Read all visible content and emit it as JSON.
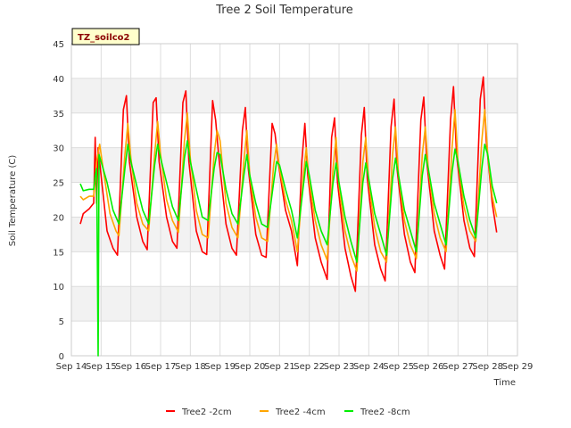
{
  "chart_data": {
    "type": "line",
    "title": "Tree 2 Soil Temperature",
    "xlabel": "Time",
    "ylabel": "Soil Temperature (C)",
    "ylim": [
      0,
      45
    ],
    "xlim": [
      14,
      29
    ],
    "yticks": [
      0,
      5,
      10,
      15,
      20,
      25,
      30,
      35,
      40,
      45
    ],
    "xticks": [
      {
        "value": 14,
        "label": "Sep 14"
      },
      {
        "value": 15,
        "label": "Sep 15"
      },
      {
        "value": 16,
        "label": "Sep 16"
      },
      {
        "value": 17,
        "label": "Sep 17"
      },
      {
        "value": 18,
        "label": "Sep 18"
      },
      {
        "value": 19,
        "label": "Sep 19"
      },
      {
        "value": 20,
        "label": "Sep 20"
      },
      {
        "value": 21,
        "label": "Sep 21"
      },
      {
        "value": 22,
        "label": "Sep 22"
      },
      {
        "value": 23,
        "label": "Sep 23"
      },
      {
        "value": 24,
        "label": "Sep 24"
      },
      {
        "value": 25,
        "label": "Sep 25"
      },
      {
        "value": 26,
        "label": "Sep 26"
      },
      {
        "value": 27,
        "label": "Sep 27"
      },
      {
        "value": 28,
        "label": "Sep 28"
      },
      {
        "value": 29,
        "label": "Sep 29"
      }
    ],
    "grid": true,
    "legend_position": "bottom",
    "annotation": "TZ_soilco2",
    "series": [
      {
        "name": "Tree2 -2cm",
        "color": "#ff0000",
        "points": [
          [
            14.3,
            19.0
          ],
          [
            14.4,
            20.5
          ],
          [
            14.6,
            21.2
          ],
          [
            14.75,
            22.0
          ],
          [
            14.8,
            31.5
          ],
          [
            14.85,
            22.0
          ],
          [
            14.9,
            30.0
          ],
          [
            15.0,
            26.0
          ],
          [
            15.2,
            18.0
          ],
          [
            15.4,
            15.5
          ],
          [
            15.55,
            14.5
          ],
          [
            15.75,
            35.5
          ],
          [
            15.85,
            37.5
          ],
          [
            15.95,
            28.0
          ],
          [
            16.2,
            20.0
          ],
          [
            16.4,
            16.5
          ],
          [
            16.55,
            15.3
          ],
          [
            16.75,
            36.5
          ],
          [
            16.85,
            37.2
          ],
          [
            16.95,
            28.0
          ],
          [
            17.2,
            20.0
          ],
          [
            17.4,
            16.5
          ],
          [
            17.55,
            15.5
          ],
          [
            17.75,
            36.5
          ],
          [
            17.85,
            38.2
          ],
          [
            17.95,
            28.0
          ],
          [
            18.2,
            18.0
          ],
          [
            18.4,
            15.0
          ],
          [
            18.55,
            14.6
          ],
          [
            18.75,
            36.8
          ],
          [
            18.85,
            34.0
          ],
          [
            18.95,
            29.0
          ],
          [
            19.2,
            19.0
          ],
          [
            19.4,
            15.5
          ],
          [
            19.55,
            14.5
          ],
          [
            19.75,
            32.5
          ],
          [
            19.85,
            35.8
          ],
          [
            19.95,
            27.0
          ],
          [
            20.2,
            17.5
          ],
          [
            20.4,
            14.5
          ],
          [
            20.55,
            14.2
          ],
          [
            20.75,
            33.5
          ],
          [
            20.85,
            32.0
          ],
          [
            20.95,
            28.0
          ],
          [
            21.2,
            21.0
          ],
          [
            21.4,
            18.0
          ],
          [
            21.6,
            13.0
          ],
          [
            21.75,
            28.0
          ],
          [
            21.85,
            33.5
          ],
          [
            21.95,
            26.0
          ],
          [
            22.2,
            17.0
          ],
          [
            22.4,
            13.5
          ],
          [
            22.6,
            11.0
          ],
          [
            22.75,
            31.5
          ],
          [
            22.85,
            34.3
          ],
          [
            22.95,
            25.0
          ],
          [
            23.2,
            15.5
          ],
          [
            23.4,
            11.5
          ],
          [
            23.55,
            9.3
          ],
          [
            23.75,
            31.8
          ],
          [
            23.85,
            35.8
          ],
          [
            23.95,
            25.5
          ],
          [
            24.2,
            16.0
          ],
          [
            24.4,
            12.5
          ],
          [
            24.55,
            10.8
          ],
          [
            24.75,
            33.0
          ],
          [
            24.85,
            37.0
          ],
          [
            24.95,
            27.0
          ],
          [
            25.2,
            17.5
          ],
          [
            25.4,
            13.5
          ],
          [
            25.55,
            12.0
          ],
          [
            25.75,
            34.0
          ],
          [
            25.85,
            37.3
          ],
          [
            25.95,
            28.0
          ],
          [
            26.2,
            18.0
          ],
          [
            26.4,
            14.5
          ],
          [
            26.55,
            12.5
          ],
          [
            26.75,
            34.0
          ],
          [
            26.85,
            38.8
          ],
          [
            26.95,
            29.0
          ],
          [
            27.2,
            19.5
          ],
          [
            27.4,
            15.5
          ],
          [
            27.55,
            14.3
          ],
          [
            27.75,
            37.0
          ],
          [
            27.85,
            40.2
          ],
          [
            27.95,
            31.0
          ],
          [
            28.15,
            22.0
          ],
          [
            28.3,
            17.8
          ]
        ]
      },
      {
        "name": "Tree2 -4cm",
        "color": "#ffa500",
        "points": [
          [
            14.3,
            23.0
          ],
          [
            14.4,
            22.5
          ],
          [
            14.6,
            23.0
          ],
          [
            14.75,
            23.0
          ],
          [
            14.85,
            28.0
          ],
          [
            14.95,
            30.5
          ],
          [
            15.1,
            26.0
          ],
          [
            15.3,
            20.5
          ],
          [
            15.5,
            18.0
          ],
          [
            15.6,
            17.3
          ],
          [
            15.8,
            29.0
          ],
          [
            15.9,
            33.5
          ],
          [
            16.0,
            28.5
          ],
          [
            16.2,
            22.0
          ],
          [
            16.4,
            19.0
          ],
          [
            16.6,
            18.0
          ],
          [
            16.8,
            29.0
          ],
          [
            16.9,
            33.8
          ],
          [
            17.0,
            29.0
          ],
          [
            17.2,
            22.5
          ],
          [
            17.4,
            19.5
          ],
          [
            17.6,
            17.8
          ],
          [
            17.8,
            31.0
          ],
          [
            17.9,
            35.0
          ],
          [
            18.0,
            28.5
          ],
          [
            18.2,
            21.0
          ],
          [
            18.4,
            17.5
          ],
          [
            18.6,
            17.0
          ],
          [
            18.8,
            29.0
          ],
          [
            18.9,
            32.5
          ],
          [
            19.0,
            31.0
          ],
          [
            19.2,
            22.0
          ],
          [
            19.4,
            18.5
          ],
          [
            19.6,
            17.0
          ],
          [
            19.8,
            28.0
          ],
          [
            19.9,
            32.5
          ],
          [
            20.0,
            26.0
          ],
          [
            20.2,
            20.0
          ],
          [
            20.4,
            17.0
          ],
          [
            20.6,
            16.5
          ],
          [
            20.8,
            27.5
          ],
          [
            20.9,
            30.5
          ],
          [
            21.0,
            27.0
          ],
          [
            21.2,
            22.5
          ],
          [
            21.4,
            19.5
          ],
          [
            21.6,
            15.0
          ],
          [
            21.8,
            26.0
          ],
          [
            21.9,
            30.0
          ],
          [
            22.0,
            25.0
          ],
          [
            22.2,
            19.5
          ],
          [
            22.4,
            16.0
          ],
          [
            22.6,
            13.8
          ],
          [
            22.8,
            27.0
          ],
          [
            22.9,
            31.5
          ],
          [
            23.0,
            24.5
          ],
          [
            23.2,
            18.0
          ],
          [
            23.4,
            14.5
          ],
          [
            23.6,
            12.2
          ],
          [
            23.8,
            28.0
          ],
          [
            23.9,
            31.5
          ],
          [
            24.0,
            25.0
          ],
          [
            24.2,
            18.5
          ],
          [
            24.4,
            15.0
          ],
          [
            24.6,
            13.5
          ],
          [
            24.8,
            29.0
          ],
          [
            24.9,
            33.0
          ],
          [
            25.0,
            26.0
          ],
          [
            25.2,
            19.5
          ],
          [
            25.4,
            16.0
          ],
          [
            25.6,
            14.0
          ],
          [
            25.8,
            29.0
          ],
          [
            25.9,
            33.0
          ],
          [
            26.0,
            27.0
          ],
          [
            26.2,
            20.5
          ],
          [
            26.4,
            17.0
          ],
          [
            26.6,
            15.0
          ],
          [
            26.8,
            30.0
          ],
          [
            26.9,
            35.5
          ],
          [
            27.0,
            28.0
          ],
          [
            27.2,
            21.5
          ],
          [
            27.4,
            18.0
          ],
          [
            27.6,
            16.5
          ],
          [
            27.8,
            31.0
          ],
          [
            27.9,
            35.5
          ],
          [
            28.0,
            29.0
          ],
          [
            28.15,
            23.0
          ],
          [
            28.3,
            20.0
          ]
        ]
      },
      {
        "name": "Tree2 -8cm",
        "color": "#00ee00",
        "points": [
          [
            14.3,
            24.8
          ],
          [
            14.4,
            23.8
          ],
          [
            14.6,
            24.0
          ],
          [
            14.75,
            24.0
          ],
          [
            14.8,
            26.0
          ],
          [
            14.85,
            27.0
          ],
          [
            14.9,
            0.0
          ],
          [
            14.93,
            29.0
          ],
          [
            15.0,
            28.0
          ],
          [
            15.2,
            25.0
          ],
          [
            15.4,
            21.0
          ],
          [
            15.6,
            19.0
          ],
          [
            15.8,
            27.0
          ],
          [
            15.9,
            30.5
          ],
          [
            16.0,
            28.0
          ],
          [
            16.2,
            24.5
          ],
          [
            16.4,
            21.0
          ],
          [
            16.6,
            19.0
          ],
          [
            16.8,
            27.5
          ],
          [
            16.9,
            30.5
          ],
          [
            17.0,
            28.5
          ],
          [
            17.2,
            25.0
          ],
          [
            17.4,
            21.5
          ],
          [
            17.6,
            19.5
          ],
          [
            17.8,
            28.5
          ],
          [
            17.9,
            31.0
          ],
          [
            18.0,
            28.0
          ],
          [
            18.2,
            24.0
          ],
          [
            18.4,
            20.0
          ],
          [
            18.6,
            19.5
          ],
          [
            18.8,
            27.0
          ],
          [
            18.9,
            29.3
          ],
          [
            19.0,
            29.0
          ],
          [
            19.2,
            24.0
          ],
          [
            19.4,
            20.5
          ],
          [
            19.6,
            19.0
          ],
          [
            19.8,
            26.0
          ],
          [
            19.9,
            29.0
          ],
          [
            20.0,
            26.0
          ],
          [
            20.2,
            22.0
          ],
          [
            20.4,
            19.0
          ],
          [
            20.6,
            18.5
          ],
          [
            20.8,
            25.0
          ],
          [
            20.9,
            28.0
          ],
          [
            21.0,
            27.5
          ],
          [
            21.2,
            24.0
          ],
          [
            21.4,
            21.0
          ],
          [
            21.6,
            17.0
          ],
          [
            21.8,
            24.5
          ],
          [
            21.9,
            28.0
          ],
          [
            22.0,
            26.0
          ],
          [
            22.2,
            21.0
          ],
          [
            22.4,
            18.0
          ],
          [
            22.6,
            16.0
          ],
          [
            22.8,
            25.0
          ],
          [
            22.9,
            27.8
          ],
          [
            23.0,
            25.0
          ],
          [
            23.2,
            20.0
          ],
          [
            23.4,
            16.5
          ],
          [
            23.6,
            13.5
          ],
          [
            23.8,
            25.0
          ],
          [
            23.9,
            27.8
          ],
          [
            24.0,
            25.5
          ],
          [
            24.2,
            20.5
          ],
          [
            24.4,
            17.5
          ],
          [
            24.6,
            14.5
          ],
          [
            24.8,
            25.5
          ],
          [
            24.9,
            28.5
          ],
          [
            25.0,
            26.0
          ],
          [
            25.2,
            21.0
          ],
          [
            25.4,
            18.0
          ],
          [
            25.6,
            15.0
          ],
          [
            25.8,
            26.0
          ],
          [
            25.9,
            29.0
          ],
          [
            26.0,
            27.0
          ],
          [
            26.2,
            22.0
          ],
          [
            26.4,
            19.0
          ],
          [
            26.6,
            16.0
          ],
          [
            26.8,
            26.5
          ],
          [
            26.9,
            29.8
          ],
          [
            27.0,
            28.0
          ],
          [
            27.2,
            23.0
          ],
          [
            27.4,
            19.5
          ],
          [
            27.6,
            17.0
          ],
          [
            27.8,
            27.0
          ],
          [
            27.9,
            30.5
          ],
          [
            28.0,
            29.0
          ],
          [
            28.15,
            24.5
          ],
          [
            28.3,
            22.0
          ]
        ]
      }
    ]
  }
}
